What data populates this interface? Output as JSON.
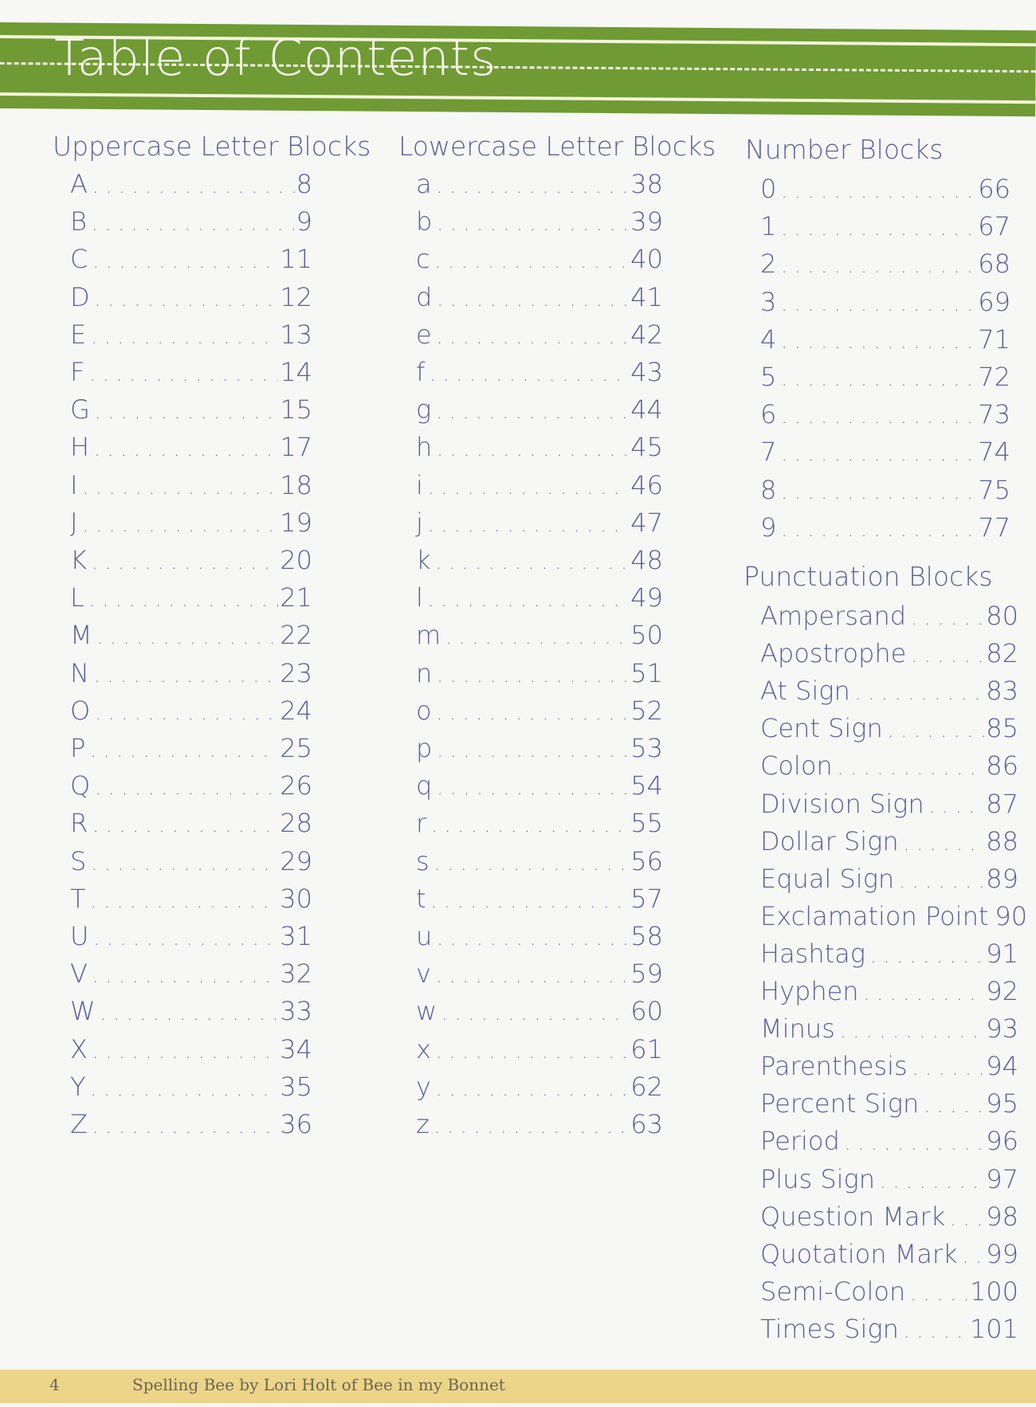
{
  "header": {
    "title": "Table of Contents",
    "band_color": "#6f9a34"
  },
  "sections": {
    "uppercase": {
      "heading": "Uppercase Letter Blocks",
      "items": [
        {
          "k": "A",
          "p": "8"
        },
        {
          "k": "B",
          "p": "9"
        },
        {
          "k": "C",
          "p": "11"
        },
        {
          "k": "D",
          "p": "12"
        },
        {
          "k": "E",
          "p": "13"
        },
        {
          "k": "F",
          "p": "14"
        },
        {
          "k": "G",
          "p": "15"
        },
        {
          "k": "H",
          "p": "17"
        },
        {
          "k": "I",
          "p": "18"
        },
        {
          "k": "J",
          "p": "19"
        },
        {
          "k": "K",
          "p": "20"
        },
        {
          "k": "L",
          "p": "21"
        },
        {
          "k": "M",
          "p": "22"
        },
        {
          "k": "N",
          "p": "23"
        },
        {
          "k": "O",
          "p": "24"
        },
        {
          "k": "P",
          "p": "25"
        },
        {
          "k": "Q",
          "p": "26"
        },
        {
          "k": "R",
          "p": "28"
        },
        {
          "k": "S",
          "p": "29"
        },
        {
          "k": "T",
          "p": "30"
        },
        {
          "k": "U",
          "p": "31"
        },
        {
          "k": "V",
          "p": "32"
        },
        {
          "k": "W",
          "p": "33"
        },
        {
          "k": "X",
          "p": "34"
        },
        {
          "k": "Y",
          "p": "35"
        },
        {
          "k": "Z",
          "p": "36"
        }
      ]
    },
    "lowercase": {
      "heading": "Lowercase Letter Blocks",
      "items": [
        {
          "k": "a",
          "p": "38"
        },
        {
          "k": "b",
          "p": "39"
        },
        {
          "k": "c",
          "p": "40"
        },
        {
          "k": "d",
          "p": "41"
        },
        {
          "k": "e",
          "p": "42"
        },
        {
          "k": "f",
          "p": "43"
        },
        {
          "k": "g",
          "p": "44"
        },
        {
          "k": "h",
          "p": "45"
        },
        {
          "k": "i",
          "p": "46"
        },
        {
          "k": "j",
          "p": "47"
        },
        {
          "k": "k",
          "p": "48"
        },
        {
          "k": "l",
          "p": "49"
        },
        {
          "k": "m",
          "p": "50"
        },
        {
          "k": "n",
          "p": "51"
        },
        {
          "k": "o",
          "p": "52"
        },
        {
          "k": "p",
          "p": "53"
        },
        {
          "k": "q",
          "p": "54"
        },
        {
          "k": "r",
          "p": "55"
        },
        {
          "k": "s",
          "p": "56"
        },
        {
          "k": "t",
          "p": "57"
        },
        {
          "k": "u",
          "p": "58"
        },
        {
          "k": "v",
          "p": "59"
        },
        {
          "k": "w",
          "p": "60"
        },
        {
          "k": "x",
          "p": "61"
        },
        {
          "k": "y",
          "p": "62"
        },
        {
          "k": "z",
          "p": "63"
        }
      ]
    },
    "numbers": {
      "heading": "Number Blocks",
      "items": [
        {
          "k": "0",
          "p": "66"
        },
        {
          "k": "1",
          "p": "67"
        },
        {
          "k": "2",
          "p": "68"
        },
        {
          "k": "3",
          "p": "69"
        },
        {
          "k": "4",
          "p": "71"
        },
        {
          "k": "5",
          "p": "72"
        },
        {
          "k": "6",
          "p": "73"
        },
        {
          "k": "7",
          "p": "74"
        },
        {
          "k": "8",
          "p": "75"
        },
        {
          "k": "9",
          "p": "77"
        }
      ]
    },
    "punctuation": {
      "heading": "Punctuation Blocks",
      "items": [
        {
          "k": "Ampersand",
          "p": "80"
        },
        {
          "k": "Apostrophe",
          "p": "82"
        },
        {
          "k": "At Sign",
          "p": "83"
        },
        {
          "k": "Cent Sign",
          "p": "85"
        },
        {
          "k": "Colon",
          "p": "86"
        },
        {
          "k": "Division Sign",
          "p": "87"
        },
        {
          "k": "Dollar Sign",
          "p": "88"
        },
        {
          "k": "Equal Sign",
          "p": "89"
        },
        {
          "k": "Exclamation Point",
          "p": "90"
        },
        {
          "k": "Hashtag",
          "p": "91"
        },
        {
          "k": "Hyphen",
          "p": "92"
        },
        {
          "k": "Minus",
          "p": "93"
        },
        {
          "k": "Parenthesis",
          "p": "94"
        },
        {
          "k": "Percent Sign",
          "p": "95"
        },
        {
          "k": "Period",
          "p": "96"
        },
        {
          "k": "Plus Sign",
          "p": "97"
        },
        {
          "k": "Question Mark",
          "p": "98"
        },
        {
          "k": "Quotation Mark",
          "p": "99"
        },
        {
          "k": "Semi-Colon",
          "p": "100"
        },
        {
          "k": "Times Sign",
          "p": "101"
        }
      ]
    }
  },
  "footer": {
    "page_number": "4",
    "text": "Spelling Bee by Lori Holt of Bee in my Bonnet"
  }
}
